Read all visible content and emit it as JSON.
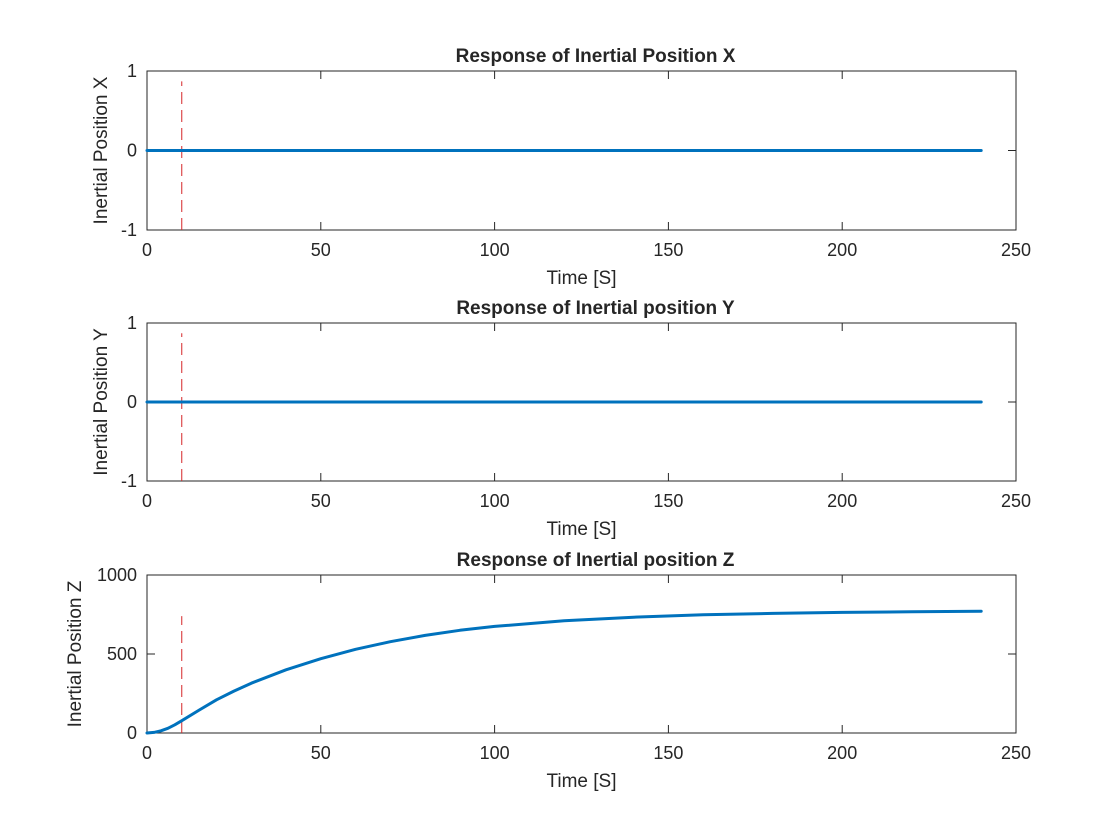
{
  "chart_data": [
    {
      "type": "line",
      "title": "Response of Inertial Position X",
      "xlabel": "Time [S]",
      "ylabel": "Inertial Position X",
      "xlim": [
        0,
        250
      ],
      "ylim": [
        -1,
        1
      ],
      "xticks": [
        0,
        50,
        100,
        150,
        200,
        250
      ],
      "yticks": [
        -1,
        0,
        1
      ],
      "xtick_labels": [
        "0",
        "50",
        "100",
        "150",
        "200",
        "250"
      ],
      "ytick_labels": [
        "-1",
        "0",
        "1"
      ],
      "grid": false,
      "series": [
        {
          "color": "#0072BD",
          "x": [
            0,
            240
          ],
          "y": [
            0,
            0
          ]
        }
      ],
      "marker_line": {
        "x": 10,
        "y_range": [
          -1,
          0.87
        ],
        "color": "#D62728",
        "style": "dashed"
      }
    },
    {
      "type": "line",
      "title": "Response of Inertial position Y",
      "xlabel": "Time [S]",
      "ylabel": "Inertial Position Y",
      "xlim": [
        0,
        250
      ],
      "ylim": [
        -1,
        1
      ],
      "xticks": [
        0,
        50,
        100,
        150,
        200,
        250
      ],
      "yticks": [
        -1,
        0,
        1
      ],
      "xtick_labels": [
        "0",
        "50",
        "100",
        "150",
        "200",
        "250"
      ],
      "ytick_labels": [
        "-1",
        "0",
        "1"
      ],
      "grid": false,
      "series": [
        {
          "color": "#0072BD",
          "x": [
            0,
            240
          ],
          "y": [
            0,
            0
          ]
        }
      ],
      "marker_line": {
        "x": 10,
        "y_range": [
          -1,
          0.87
        ],
        "color": "#D62728",
        "style": "dashed"
      }
    },
    {
      "type": "line",
      "title": "Response of Inertial position Z",
      "xlabel": "Time [S]",
      "ylabel": "Inertial Position Z",
      "xlim": [
        0,
        250
      ],
      "ylim": [
        0,
        1000
      ],
      "xticks": [
        0,
        50,
        100,
        150,
        200,
        250
      ],
      "yticks": [
        0,
        500,
        1000
      ],
      "xtick_labels": [
        "0",
        "50",
        "100",
        "150",
        "200",
        "250"
      ],
      "ytick_labels": [
        "0",
        "500",
        "1000"
      ],
      "grid": false,
      "series": [
        {
          "color": "#0072BD",
          "x": [
            0,
            2,
            4,
            6,
            8,
            10,
            15,
            20,
            25,
            30,
            40,
            50,
            60,
            70,
            80,
            90,
            100,
            120,
            140,
            160,
            180,
            200,
            220,
            240
          ],
          "y": [
            0,
            4,
            14,
            30,
            52,
            78,
            145,
            210,
            265,
            315,
            400,
            470,
            530,
            578,
            618,
            650,
            675,
            710,
            733,
            748,
            757,
            763,
            767,
            770
          ]
        }
      ],
      "marker_line": {
        "x": 10,
        "y_range": [
          0,
          740
        ],
        "color": "#D62728",
        "style": "dashed"
      }
    }
  ]
}
